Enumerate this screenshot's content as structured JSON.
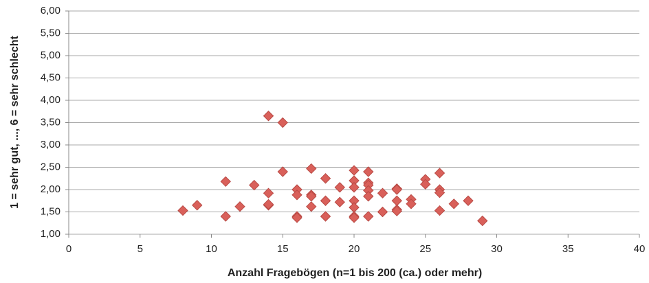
{
  "chart_data": {
    "type": "scatter",
    "x_label": "Anzahl Fragebögen (n=1 bis 200 (ca.) oder mehr)",
    "y_label": "1 = sehr gut, ..., 6 = sehr schlecht",
    "color": "#d9605a",
    "grid": true,
    "xlim": [
      0,
      40
    ],
    "xticks": [
      0,
      5,
      10,
      15,
      20,
      25,
      30,
      35,
      40
    ],
    "ylim": [
      1,
      6
    ],
    "yticks": [
      {
        "value": 1,
        "label": "1,00"
      },
      {
        "value": 1.5,
        "label": "1,50"
      },
      {
        "value": 2,
        "label": "2,00"
      },
      {
        "value": 2.5,
        "label": "2,50"
      },
      {
        "value": 3,
        "label": "3,00"
      },
      {
        "value": 3.5,
        "label": "3,50"
      },
      {
        "value": 4,
        "label": "4,00"
      },
      {
        "value": 4.5,
        "label": "4,50"
      },
      {
        "value": 5,
        "label": "5,00"
      },
      {
        "value": 5.5,
        "label": "5,50"
      },
      {
        "value": 6,
        "label": "6,00"
      }
    ],
    "x": [
      8,
      9,
      11,
      11,
      12,
      13,
      14,
      14,
      14,
      14,
      15,
      15,
      16,
      16,
      16,
      16,
      17,
      17,
      17,
      17,
      18,
      18,
      18,
      19,
      19,
      20,
      20,
      20,
      20,
      20,
      20,
      20,
      21,
      21,
      21,
      21,
      21,
      21,
      22,
      22,
      23,
      23,
      23,
      23,
      23,
      24,
      24,
      25,
      25,
      26,
      26,
      26,
      26,
      27,
      28,
      29
    ],
    "y": [
      1.53,
      1.65,
      2.18,
      1.4,
      1.62,
      2.1,
      3.65,
      1.92,
      1.65,
      1.67,
      3.5,
      2.4,
      2.0,
      1.88,
      1.4,
      1.37,
      2.47,
      1.88,
      1.85,
      1.62,
      2.25,
      1.75,
      1.4,
      2.05,
      1.72,
      2.43,
      2.2,
      2.05,
      1.75,
      1.6,
      1.4,
      1.37,
      2.4,
      2.15,
      2.1,
      1.98,
      1.85,
      1.4,
      1.92,
      1.5,
      2.02,
      2.0,
      1.75,
      1.55,
      1.52,
      1.78,
      1.68,
      2.23,
      2.12,
      2.37,
      2.0,
      1.93,
      1.53,
      1.68,
      1.75,
      1.3
    ]
  }
}
